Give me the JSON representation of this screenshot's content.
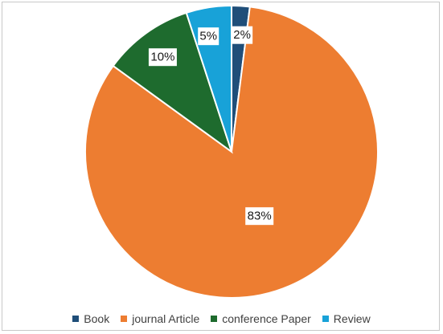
{
  "chart_data": {
    "type": "pie",
    "title": "",
    "categories": [
      "Book",
      "journal Article",
      "conference Paper",
      "Review"
    ],
    "values": [
      2,
      83,
      10,
      5
    ],
    "labels": [
      "2%",
      "83%",
      "10%",
      "5%"
    ],
    "colors": [
      "#1f4e79",
      "#ed7d31",
      "#1e6b2e",
      "#18a2d8"
    ],
    "legend_position": "bottom",
    "start_angle_deg": 0,
    "direction": "clockwise"
  }
}
